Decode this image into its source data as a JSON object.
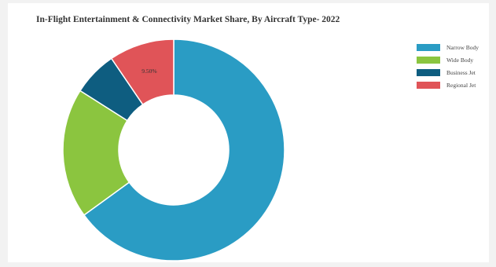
{
  "chart_data": {
    "type": "pie",
    "title": "In-Flight Entertainment & Connectivity Market Share, By Aircraft Type- 2022",
    "categories": [
      "Narrow Body",
      "Wide Body",
      "Business Jet",
      "Regional Jet"
    ],
    "values": [
      65.0,
      19.0,
      6.5,
      9.5
    ],
    "colors": [
      "#2a9cc4",
      "#8bc53f",
      "#0e5d80",
      "#e05458"
    ],
    "data_labels": [
      "",
      "",
      "",
      "9.50%"
    ],
    "legend_position": "right",
    "donut": true
  }
}
